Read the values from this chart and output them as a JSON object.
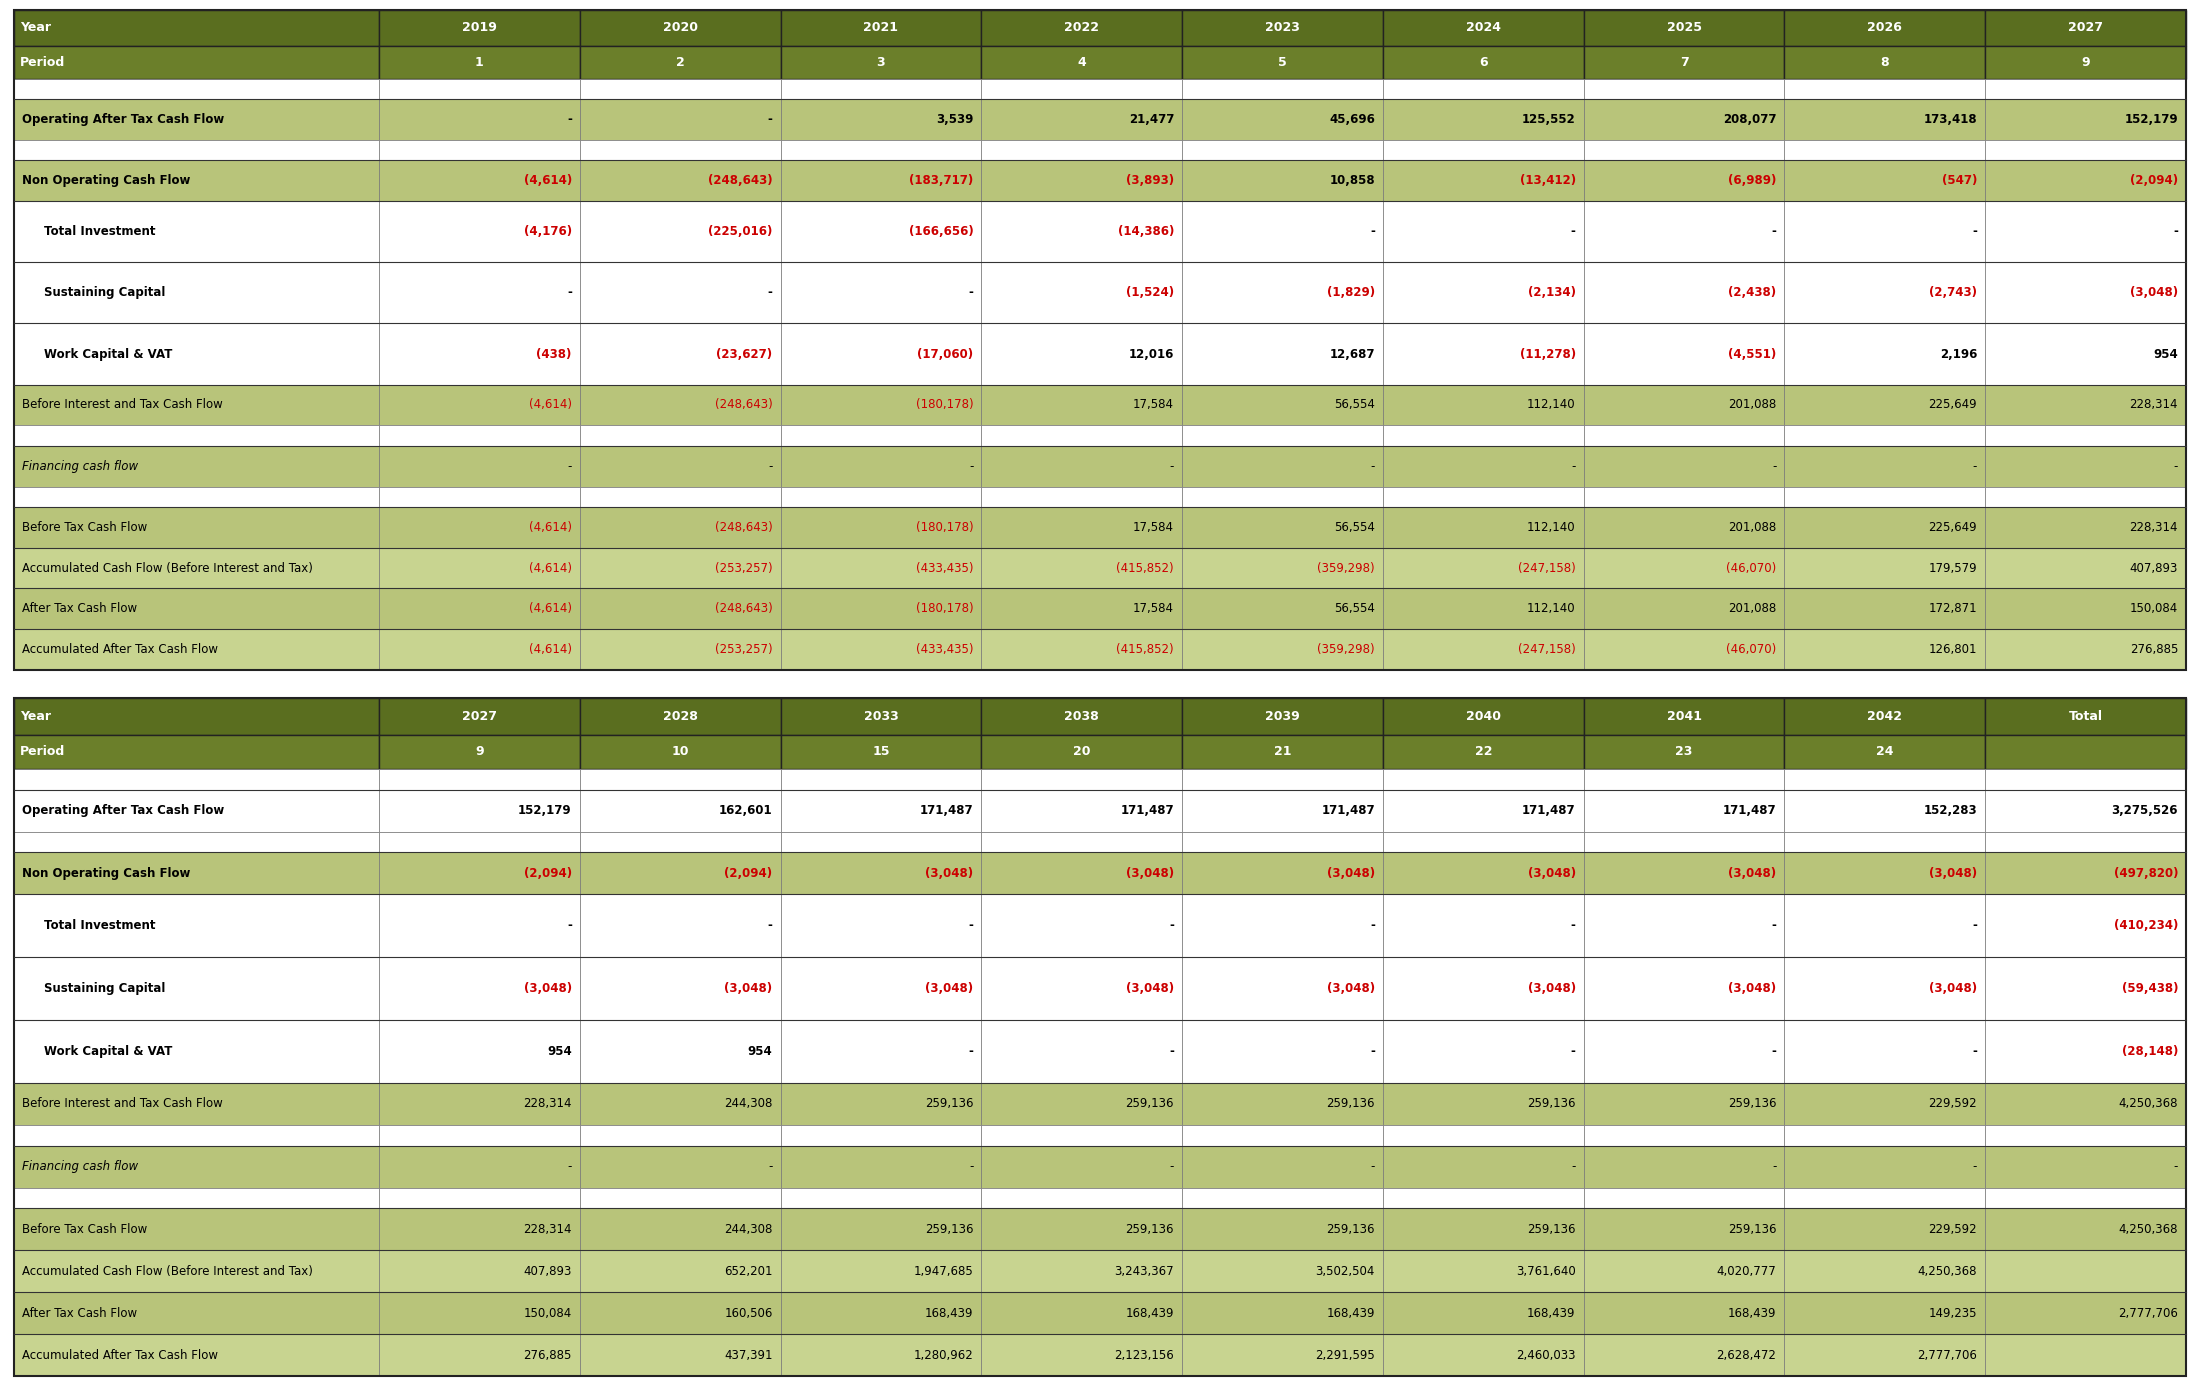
{
  "colors": {
    "dark_green": "#5A6E1F",
    "medium_green": "#6B7F2A",
    "light_green": "#B8C47A",
    "very_light_green": "#C8D490",
    "white": "#FFFFFF",
    "red": "#CC0000",
    "black": "#000000",
    "text_white": "#FFFFFF",
    "border_dark": "#333333",
    "border_light": "#888888"
  },
  "table1": {
    "header_years": [
      "Year",
      "2019",
      "2020",
      "2021",
      "2022",
      "2023",
      "2024",
      "2025",
      "2026",
      "2027"
    ],
    "header_periods": [
      "Period",
      "1",
      "2",
      "3",
      "4",
      "5",
      "6",
      "7",
      "8",
      "9"
    ],
    "rows": [
      {
        "label": "",
        "values": [
          "",
          "",
          "",
          "",
          "",
          "",
          "",
          "",
          ""
        ],
        "style": "spacer_white",
        "bg": "white"
      },
      {
        "label": "Operating After Tax Cash Flow",
        "values": [
          "-",
          "-",
          "3,539",
          "21,477",
          "45,696",
          "125,552",
          "208,077",
          "173,418",
          "152,179"
        ],
        "style": "bold",
        "bg": "light_green",
        "red_indices": []
      },
      {
        "label": "",
        "values": [
          "",
          "",
          "",
          "",
          "",
          "",
          "",
          "",
          ""
        ],
        "style": "spacer_white",
        "bg": "white"
      },
      {
        "label": "Non Operating Cash Flow",
        "values": [
          "(4,614)",
          "(248,643)",
          "(183,717)",
          "(3,893)",
          "10,858",
          "(13,412)",
          "(6,989)",
          "(547)",
          "(2,094)"
        ],
        "style": "bold",
        "bg": "light_green",
        "red_indices": [
          0,
          1,
          2,
          3,
          5,
          6,
          7,
          8
        ]
      },
      {
        "label": "   Total Investment",
        "values": [
          "(4,176)",
          "(225,016)",
          "(166,656)",
          "(14,386)",
          "-",
          "-",
          "-",
          "-",
          "-"
        ],
        "style": "bold_indent",
        "bg": "white",
        "red_indices": [
          0,
          1,
          2,
          3
        ]
      },
      {
        "label": "   Sustaining Capital",
        "values": [
          "-",
          "-",
          "-",
          "(1,524)",
          "(1,829)",
          "(2,134)",
          "(2,438)",
          "(2,743)",
          "(3,048)"
        ],
        "style": "bold_indent",
        "bg": "white",
        "red_indices": [
          3,
          4,
          5,
          6,
          7,
          8
        ]
      },
      {
        "label": "   Work Capital & VAT",
        "values": [
          "(438)",
          "(23,627)",
          "(17,060)",
          "12,016",
          "12,687",
          "(11,278)",
          "(4,551)",
          "2,196",
          "954"
        ],
        "style": "bold_indent",
        "bg": "white",
        "red_indices": [
          0,
          1,
          2,
          5,
          6
        ]
      },
      {
        "label": "Before Interest and Tax Cash Flow",
        "values": [
          "(4,614)",
          "(248,643)",
          "(180,178)",
          "17,584",
          "56,554",
          "112,140",
          "201,088",
          "225,649",
          "228,314"
        ],
        "style": "normal",
        "bg": "light_green",
        "red_indices": [
          0,
          1,
          2
        ]
      },
      {
        "label": "",
        "values": [
          "",
          "",
          "",
          "",
          "",
          "",
          "",
          "",
          ""
        ],
        "style": "spacer_white",
        "bg": "white"
      },
      {
        "label": "Financing cash flow",
        "values": [
          "-",
          "-",
          "-",
          "-",
          "-",
          "-",
          "-",
          "-",
          "-"
        ],
        "style": "italic",
        "bg": "light_green",
        "red_indices": []
      },
      {
        "label": "",
        "values": [
          "",
          "",
          "",
          "",
          "",
          "",
          "",
          "",
          ""
        ],
        "style": "spacer_white",
        "bg": "white"
      },
      {
        "label": "Before Tax Cash Flow",
        "values": [
          "(4,614)",
          "(248,643)",
          "(180,178)",
          "17,584",
          "56,554",
          "112,140",
          "201,088",
          "225,649",
          "228,314"
        ],
        "style": "normal",
        "bg": "light_green",
        "red_indices": [
          0,
          1,
          2
        ]
      },
      {
        "label": "Accumulated Cash Flow (Before Interest and Tax)",
        "values": [
          "(4,614)",
          "(253,257)",
          "(433,435)",
          "(415,852)",
          "(359,298)",
          "(247,158)",
          "(46,070)",
          "179,579",
          "407,893"
        ],
        "style": "normal",
        "bg": "very_light_green",
        "red_indices": [
          0,
          1,
          2,
          3,
          4,
          5,
          6
        ]
      },
      {
        "label": "After Tax Cash Flow",
        "values": [
          "(4,614)",
          "(248,643)",
          "(180,178)",
          "17,584",
          "56,554",
          "112,140",
          "201,088",
          "172,871",
          "150,084"
        ],
        "style": "normal",
        "bg": "light_green",
        "red_indices": [
          0,
          1,
          2
        ]
      },
      {
        "label": "Accumulated After Tax Cash Flow",
        "values": [
          "(4,614)",
          "(253,257)",
          "(433,435)",
          "(415,852)",
          "(359,298)",
          "(247,158)",
          "(46,070)",
          "126,801",
          "276,885"
        ],
        "style": "normal",
        "bg": "very_light_green",
        "red_indices": [
          0,
          1,
          2,
          3,
          4,
          5,
          6
        ]
      }
    ]
  },
  "table2": {
    "header_years": [
      "Year",
      "2027",
      "2028",
      "2033",
      "2038",
      "2039",
      "2040",
      "2041",
      "2042",
      "Total"
    ],
    "header_periods": [
      "Period",
      "9",
      "10",
      "15",
      "20",
      "21",
      "22",
      "23",
      "24",
      ""
    ],
    "rows": [
      {
        "label": "",
        "values": [
          "",
          "",
          "",
          "",
          "",
          "",
          "",
          "",
          ""
        ],
        "style": "spacer_white",
        "bg": "white"
      },
      {
        "label": "Operating After Tax Cash Flow",
        "values": [
          "152,179",
          "162,601",
          "171,487",
          "171,487",
          "171,487",
          "171,487",
          "171,487",
          "152,283",
          "3,275,526"
        ],
        "style": "bold",
        "bg": "white",
        "red_indices": []
      },
      {
        "label": "",
        "values": [
          "",
          "",
          "",
          "",
          "",
          "",
          "",
          "",
          ""
        ],
        "style": "spacer_white",
        "bg": "white"
      },
      {
        "label": "Non Operating Cash Flow",
        "values": [
          "(2,094)",
          "(2,094)",
          "(3,048)",
          "(3,048)",
          "(3,048)",
          "(3,048)",
          "(3,048)",
          "(3,048)",
          "(497,820)"
        ],
        "style": "bold",
        "bg": "light_green",
        "red_indices": [
          0,
          1,
          2,
          3,
          4,
          5,
          6,
          7,
          8
        ]
      },
      {
        "label": "   Total Investment",
        "values": [
          "-",
          "-",
          "-",
          "-",
          "-",
          "-",
          "-",
          "-",
          "(410,234)"
        ],
        "style": "bold_indent",
        "bg": "white",
        "red_indices": [
          8
        ]
      },
      {
        "label": "   Sustaining Capital",
        "values": [
          "(3,048)",
          "(3,048)",
          "(3,048)",
          "(3,048)",
          "(3,048)",
          "(3,048)",
          "(3,048)",
          "(3,048)",
          "(59,438)"
        ],
        "style": "bold_indent",
        "bg": "white",
        "red_indices": [
          0,
          1,
          2,
          3,
          4,
          5,
          6,
          7,
          8
        ]
      },
      {
        "label": "   Work Capital & VAT",
        "values": [
          "954",
          "954",
          "-",
          "-",
          "-",
          "-",
          "-",
          "-",
          "(28,148)"
        ],
        "style": "bold_indent",
        "bg": "white",
        "red_indices": [
          8
        ]
      },
      {
        "label": "Before Interest and Tax Cash Flow",
        "values": [
          "228,314",
          "244,308",
          "259,136",
          "259,136",
          "259,136",
          "259,136",
          "259,136",
          "229,592",
          "4,250,368"
        ],
        "style": "normal",
        "bg": "light_green",
        "red_indices": []
      },
      {
        "label": "",
        "values": [
          "",
          "",
          "",
          "",
          "",
          "",
          "",
          "",
          ""
        ],
        "style": "spacer_white",
        "bg": "white"
      },
      {
        "label": "Financing cash flow",
        "values": [
          "-",
          "-",
          "-",
          "-",
          "-",
          "-",
          "-",
          "-",
          "-"
        ],
        "style": "italic",
        "bg": "light_green",
        "red_indices": []
      },
      {
        "label": "",
        "values": [
          "",
          "",
          "",
          "",
          "",
          "",
          "",
          "",
          ""
        ],
        "style": "spacer_white",
        "bg": "white"
      },
      {
        "label": "Before Tax Cash Flow",
        "values": [
          "228,314",
          "244,308",
          "259,136",
          "259,136",
          "259,136",
          "259,136",
          "259,136",
          "229,592",
          "4,250,368"
        ],
        "style": "normal",
        "bg": "light_green",
        "red_indices": []
      },
      {
        "label": "Accumulated Cash Flow (Before Interest and Tax)",
        "values": [
          "407,893",
          "652,201",
          "1,947,685",
          "3,243,367",
          "3,502,504",
          "3,761,640",
          "4,020,777",
          "4,250,368",
          ""
        ],
        "style": "normal",
        "bg": "very_light_green",
        "red_indices": []
      },
      {
        "label": "After Tax Cash Flow",
        "values": [
          "150,084",
          "160,506",
          "168,439",
          "168,439",
          "168,439",
          "168,439",
          "168,439",
          "149,235",
          "2,777,706"
        ],
        "style": "normal",
        "bg": "light_green",
        "red_indices": []
      },
      {
        "label": "Accumulated After Tax Cash Flow",
        "values": [
          "276,885",
          "437,391",
          "1,280,962",
          "2,123,156",
          "2,291,595",
          "2,460,033",
          "2,628,472",
          "2,777,706",
          ""
        ],
        "style": "normal",
        "bg": "very_light_green",
        "red_indices": []
      }
    ]
  }
}
